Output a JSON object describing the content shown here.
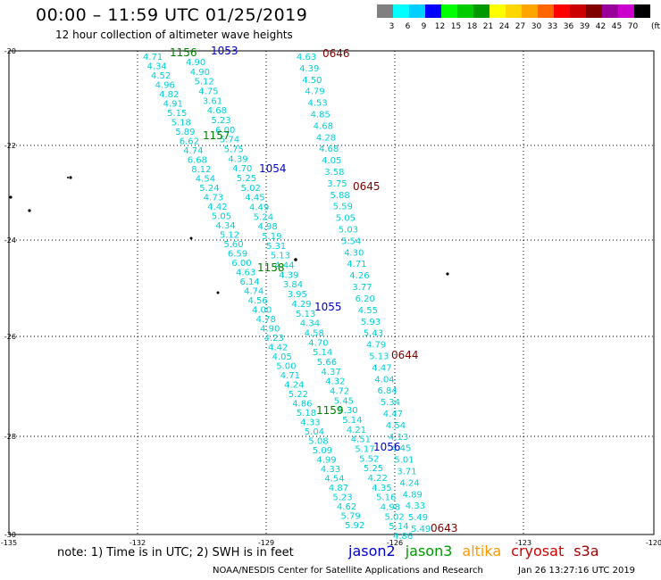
{
  "title": "00:00 – 11:59 UTC 01/25/2019",
  "subtitle": "12 hour collection of altimeter wave heights",
  "legend": {
    "colors": [
      "#808080",
      "#00ffff",
      "#00d0ff",
      "#0000ff",
      "#00ff00",
      "#00cc00",
      "#009900",
      "#ffff00",
      "#ffd700",
      "#ffa500",
      "#ff6600",
      "#ff0000",
      "#cc0000",
      "#800000",
      "#990099",
      "#cc00cc",
      "#000000"
    ],
    "labels": [
      "3",
      "6",
      "9",
      "12",
      "15",
      "18",
      "21",
      "24",
      "27",
      "30",
      "33",
      "36",
      "39",
      "42",
      "45",
      "70"
    ],
    "unit": "(ft)"
  },
  "axes": {
    "lat_labels": [
      "-20",
      "-22",
      "-24",
      "-26",
      "-28",
      "-30"
    ],
    "lon_labels": [
      "-135",
      "-132",
      "-129",
      "-126",
      "-123",
      "-120"
    ]
  },
  "tracks": [
    {
      "id": "t1",
      "values": [
        "4.71",
        "4.34",
        "4.52",
        "4.96",
        "4.82",
        "4.91",
        "5.15",
        "5.18",
        "5.89",
        "6.62",
        "4.74",
        "6.68",
        "8.12",
        "4.54",
        "5.24",
        "4.73",
        "4.42",
        "5.05",
        "4.34",
        "5.12",
        "5.60",
        "6.59",
        "6.00",
        "4.63",
        "6.14",
        "4.74",
        "4.56",
        "4.00",
        "4.78",
        "4.90",
        "4.23",
        "4.42",
        "4.05",
        "5.00",
        "4.71",
        "4.24",
        "5.22",
        "4.86",
        "5.18",
        "4.33",
        "5.04",
        "5.08",
        "5.09",
        "4.99",
        "4.33",
        "4.54",
        "4.87",
        "5.23",
        "4.62",
        "5.79",
        "5.92"
      ]
    },
    {
      "id": "t2",
      "values": [
        "4.90",
        "4.90",
        "5.12",
        "4.75",
        "3.61",
        "4.68",
        "5.23",
        "6.00",
        "5.74",
        "5.75",
        "4.39",
        "4.70",
        "5.25",
        "5.02",
        "4.45",
        "4.49",
        "5.24",
        "4.98",
        "5.19",
        "5.31",
        "5.13",
        "4.44",
        "4.39",
        "3.84",
        "3.95",
        "4.29",
        "5.13",
        "4.34",
        "4.58",
        "4.70",
        "5.14",
        "5.66",
        "4.37",
        "4.32",
        "4.72",
        "5.45",
        "5.30",
        "5.14",
        "4.21",
        "4.51",
        "5.17",
        "5.52",
        "5.25",
        "4.22",
        "4.35",
        "5.16",
        "4.98",
        "5.02",
        "5.14",
        "4.86"
      ]
    },
    {
      "id": "t3",
      "values": [
        "4.63",
        "4.39",
        "4.50",
        "4.79",
        "4.53",
        "4.85",
        "4.68",
        "4.28",
        "4.68",
        "4.05",
        "3.58",
        "3.75",
        "5.88",
        "5.59",
        "5.05",
        "5.03",
        "5.54",
        "4.30",
        "4.71",
        "4.26",
        "3.77",
        "6.20",
        "4.55",
        "5.93",
        "5.43",
        "4.79",
        "5.13",
        "4.47",
        "4.04",
        "6.84",
        "5.34",
        "4.47",
        "4.54",
        "4.13",
        "4.45",
        "5.01",
        "3.71",
        "4.24",
        "4.89",
        "4.33",
        "5.49",
        "5.49"
      ]
    }
  ],
  "passes": [
    {
      "label": "1156",
      "color": "#008000"
    },
    {
      "label": "1053",
      "color": "#0000cc"
    },
    {
      "label": "0646",
      "color": "#800000"
    },
    {
      "label": "1157",
      "color": "#008000"
    },
    {
      "label": "1054",
      "color": "#0000cc"
    },
    {
      "label": "0645",
      "color": "#800000"
    },
    {
      "label": "1158",
      "color": "#008000"
    },
    {
      "label": "1055",
      "color": "#0000cc"
    },
    {
      "label": "0644",
      "color": "#800000"
    },
    {
      "label": "1159",
      "color": "#008000"
    },
    {
      "label": "1056",
      "color": "#0000cc"
    },
    {
      "label": "0643",
      "color": "#800000"
    }
  ],
  "note": "note: 1) Time is in UTC; 2) SWH is in feet",
  "satellites": [
    {
      "name": "jason2",
      "color": "#0000cc"
    },
    {
      "name": "jason3",
      "color": "#009900"
    },
    {
      "name": "altika",
      "color": "#ff9900"
    },
    {
      "name": "cryosat",
      "color": "#cc0000"
    },
    {
      "name": "s3a",
      "color": "#990000"
    }
  ],
  "credit": "NOAA/NESDIS Center for Satellite Applications and Research",
  "timestamp": "Jan 26 13:27:16 UTC 2019"
}
